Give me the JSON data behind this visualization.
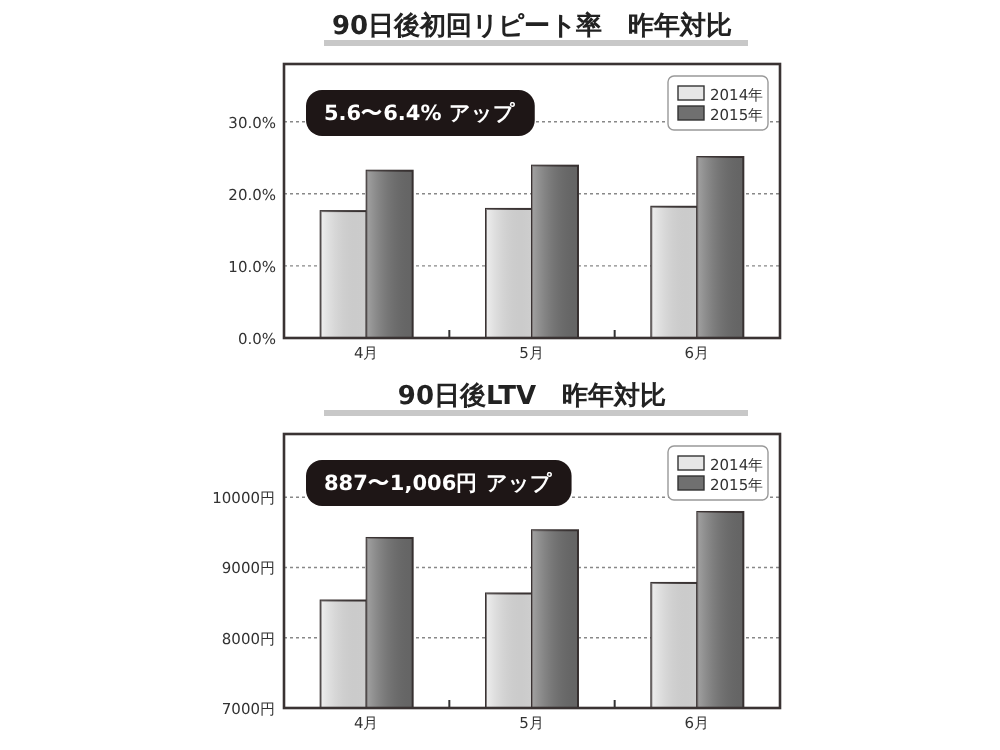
{
  "chart_data": [
    {
      "type": "bar",
      "title": "90日後初回リピート率　昨年対比",
      "categories": [
        "4月",
        "5月",
        "6月"
      ],
      "series": [
        {
          "name": "2014年",
          "color": "#e6e6e6",
          "values": [
            17.6,
            17.9,
            18.2
          ]
        },
        {
          "name": "2015年",
          "color": "#707070",
          "values": [
            23.2,
            23.9,
            25.1
          ]
        }
      ],
      "ylim": [
        0,
        38
      ],
      "yticks": [
        {
          "value": 0,
          "label": "0.0%"
        },
        {
          "value": 10,
          "label": "10.0%"
        },
        {
          "value": 20,
          "label": "20.0%"
        },
        {
          "value": 30,
          "label": "30.0%"
        }
      ],
      "grid": "y",
      "legend": "top right",
      "annotations": [
        "5.6〜6.4% アップ"
      ]
    },
    {
      "type": "bar",
      "title": "90日後LTV　昨年対比",
      "categories": [
        "4月",
        "5月",
        "6月"
      ],
      "series": [
        {
          "name": "2014年",
          "color": "#e6e6e6",
          "values": [
            8530,
            8630,
            8780
          ]
        },
        {
          "name": "2015年",
          "color": "#707070",
          "values": [
            9420,
            9530,
            9790
          ]
        }
      ],
      "ylim": [
        7000,
        10900
      ],
      "yticks": [
        {
          "value": 7000,
          "label": "7000円"
        },
        {
          "value": 8000,
          "label": "8000円"
        },
        {
          "value": 9000,
          "label": "9000円"
        },
        {
          "value": 10000,
          "label": "10000円"
        }
      ],
      "grid": "y",
      "legend": "top right",
      "annotations": [
        "887〜1,006円 アップ"
      ]
    }
  ]
}
